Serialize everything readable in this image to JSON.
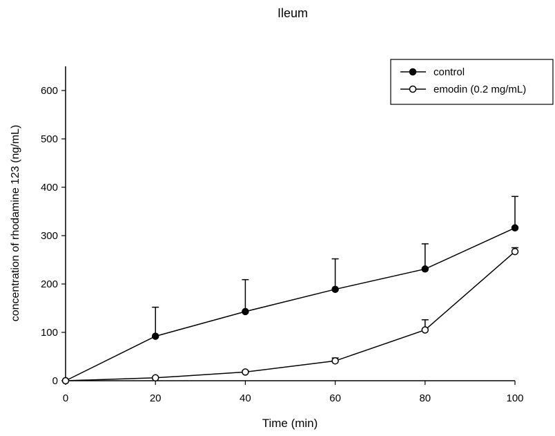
{
  "chart_data": {
    "type": "line",
    "title": "Ileum",
    "xlabel": "Time (min)",
    "ylabel": "concentration of rhodamine 123 (ng/mL)",
    "xlim": [
      0,
      100
    ],
    "ylim": [
      0,
      650
    ],
    "xticks": [
      0,
      20,
      40,
      60,
      80,
      100
    ],
    "yticks": [
      0,
      100,
      200,
      300,
      400,
      500,
      600
    ],
    "grid": false,
    "legend_position": "top-right",
    "x": [
      0,
      20,
      40,
      60,
      80,
      100
    ],
    "series": [
      {
        "name": "control",
        "marker": "filled-circle",
        "values": [
          0,
          92,
          143,
          189,
          231,
          316
        ],
        "error": [
          0,
          60,
          66,
          63,
          52,
          65
        ]
      },
      {
        "name": "emodin (0.2 mg/mL)",
        "marker": "open-circle",
        "values": [
          0,
          6,
          18,
          41,
          105,
          267
        ],
        "error": [
          0,
          2,
          3,
          6,
          21,
          8
        ]
      }
    ]
  }
}
